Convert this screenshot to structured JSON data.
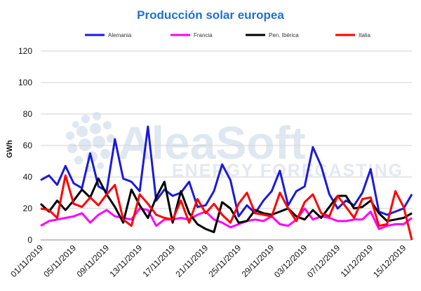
{
  "chart_data": {
    "type": "line",
    "title": "Producción solar europea",
    "ylabel": "GWh",
    "xlabel": "",
    "ylim": [
      0,
      120
    ],
    "yticks": [
      0,
      20,
      40,
      60,
      80,
      100,
      120
    ],
    "grid": true,
    "legend_position": "top",
    "xtick_labels": [
      "01/11/2019",
      "05/11/2019",
      "09/11/2019",
      "13/11/2019",
      "17/11/2019",
      "21/11/2019",
      "25/11/2019",
      "29/11/2019",
      "03/12/2019",
      "07/12/2019",
      "11/12/2019",
      "15/12/2019"
    ],
    "x": [
      "01/11/2019",
      "02/11/2019",
      "03/11/2019",
      "04/11/2019",
      "05/11/2019",
      "06/11/2019",
      "07/11/2019",
      "08/11/2019",
      "09/11/2019",
      "10/11/2019",
      "11/11/2019",
      "12/11/2019",
      "13/11/2019",
      "14/11/2019",
      "15/11/2019",
      "16/11/2019",
      "17/11/2019",
      "18/11/2019",
      "19/11/2019",
      "20/11/2019",
      "21/11/2019",
      "22/11/2019",
      "23/11/2019",
      "24/11/2019",
      "25/11/2019",
      "26/11/2019",
      "27/11/2019",
      "28/11/2019",
      "29/11/2019",
      "30/11/2019",
      "01/12/2019",
      "02/12/2019",
      "03/12/2019",
      "04/12/2019",
      "05/12/2019",
      "06/12/2019",
      "07/12/2019",
      "08/12/2019",
      "09/12/2019",
      "10/12/2019",
      "11/12/2019",
      "12/12/2019",
      "13/12/2019",
      "14/12/2019",
      "15/12/2019",
      "16/12/2019"
    ],
    "series": [
      {
        "name": "Alemania",
        "color": "#1a1adb",
        "values": [
          38,
          41,
          35,
          47,
          36,
          33,
          55,
          34,
          31,
          64,
          39,
          37,
          31,
          72,
          25,
          32,
          28,
          30,
          37,
          21,
          22,
          31,
          48,
          38,
          15,
          22,
          17,
          25,
          31,
          44,
          22,
          31,
          34,
          59,
          47,
          29,
          20,
          25,
          22,
          30,
          45,
          18,
          16,
          18,
          20,
          29
        ]
      },
      {
        "name": "Francia",
        "color": "#ff00ff",
        "values": [
          9,
          12,
          13,
          14,
          15,
          17,
          11,
          16,
          19,
          15,
          14,
          13,
          20,
          19,
          9,
          13,
          13,
          14,
          13,
          16,
          18,
          13,
          11,
          8,
          10,
          12,
          13,
          12,
          15,
          10,
          9,
          13,
          20,
          13,
          15,
          14,
          12,
          12,
          13,
          13,
          18,
          7,
          9,
          10,
          10,
          14
        ]
      },
      {
        "name": "Pen. Ibérica",
        "color": "#000000",
        "values": [
          23,
          18,
          25,
          19,
          25,
          32,
          27,
          39,
          29,
          21,
          11,
          32,
          22,
          14,
          27,
          37,
          11,
          31,
          17,
          10,
          7,
          5,
          24,
          20,
          11,
          12,
          19,
          17,
          16,
          18,
          20,
          15,
          13,
          19,
          14,
          21,
          28,
          28,
          20,
          21,
          25,
          17,
          12,
          13,
          14,
          17
        ]
      },
      {
        "name": "Italia",
        "color": "#ff0000",
        "values": [
          20,
          19,
          14,
          41,
          23,
          21,
          27,
          22,
          29,
          35,
          13,
          9,
          29,
          23,
          16,
          14,
          13,
          25,
          11,
          26,
          17,
          23,
          16,
          11,
          23,
          30,
          17,
          16,
          15,
          30,
          20,
          12,
          24,
          29,
          17,
          15,
          28,
          21,
          14,
          26,
          27,
          9,
          10,
          31,
          21,
          0
        ]
      }
    ]
  },
  "watermark": {
    "brand": "AleaSoft",
    "tagline": "ENERGY FORECASTING"
  }
}
